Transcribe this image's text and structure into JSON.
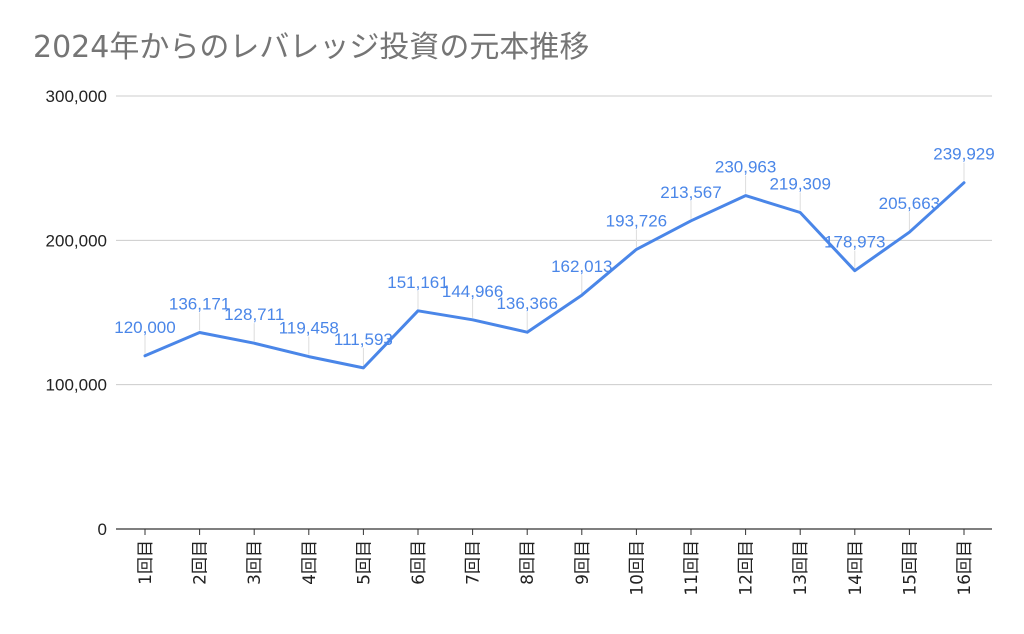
{
  "chart_data": {
    "type": "line",
    "title": "2024年からのレバレッジ投資の元本推移",
    "xlabel": "",
    "ylabel": "",
    "categories": [
      "1回目",
      "2回目",
      "3回目",
      "4回目",
      "5回目",
      "6回目",
      "7回目",
      "8回目",
      "9回目",
      "10回目",
      "11回目",
      "12回目",
      "13回目",
      "14回目",
      "15回目",
      "16回目"
    ],
    "series": [
      {
        "values": [
          120000,
          136171,
          128711,
          119458,
          111593,
          151161,
          144966,
          136366,
          162013,
          193726,
          213567,
          230963,
          219309,
          178973,
          205663,
          239929
        ],
        "data_labels": [
          "120,000",
          "136,171",
          "128,711",
          "119,458",
          "111,593",
          "151,161",
          "144,966",
          "136,366",
          "162,013",
          "193,726",
          "213,567",
          "230,963",
          "219,309",
          "178,973",
          "205,663",
          "239,929"
        ]
      }
    ],
    "ylim": [
      0,
      300000
    ],
    "yticks": [
      0,
      100000,
      200000,
      300000
    ],
    "ytick_labels": [
      "0",
      "100,000",
      "200,000",
      "300,000"
    ],
    "grid": true,
    "legend": "none",
    "colors": {
      "line": "#4a86e8",
      "grid": "#cccccc",
      "axis": "#333333"
    }
  }
}
